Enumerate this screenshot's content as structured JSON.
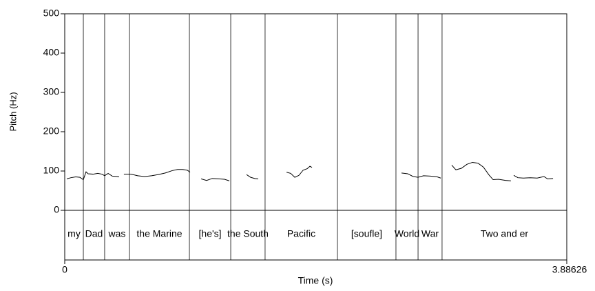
{
  "chart_data": {
    "type": "line",
    "x_label": "Time (s)",
    "y_label": "Pitch (Hz)",
    "xlim": [
      0,
      3.88626
    ],
    "xticks": [
      0,
      3.88626
    ],
    "ylim": [
      0,
      500
    ],
    "yticks": [
      0,
      100,
      200,
      300,
      400,
      500
    ],
    "color": "#000000",
    "x": [
      0.016,
      0.048,
      0.085,
      0.117,
      0.144,
      0.165,
      0.181,
      0.219,
      0.256,
      0.288,
      0.309,
      0.336,
      0.368,
      0.405,
      0.421,
      null,
      0.458,
      0.512,
      0.565,
      0.618,
      0.672,
      0.725,
      0.778,
      0.832,
      0.874,
      0.912,
      0.949,
      0.97,
      null,
      1.056,
      1.098,
      1.141,
      1.194,
      1.237,
      1.274,
      null,
      1.407,
      1.439,
      1.471,
      1.498,
      null,
      1.717,
      1.749,
      1.781,
      1.813,
      1.845,
      1.877,
      1.898,
      1.914,
      null,
      2.607,
      2.655,
      2.697,
      2.735,
      2.777,
      2.831,
      2.884,
      2.911,
      null,
      2.996,
      3.028,
      3.071,
      3.113,
      3.156,
      3.199,
      3.241,
      3.284,
      3.316,
      3.358,
      3.412,
      3.454,
      null,
      3.476,
      3.508,
      3.55,
      3.604,
      3.657,
      3.71,
      3.737,
      3.78
    ],
    "values": [
      80,
      83,
      85,
      84,
      78,
      98,
      93,
      92,
      94,
      92,
      88,
      94,
      87,
      86,
      85,
      null,
      92,
      92,
      88,
      86,
      88,
      91,
      95,
      101,
      104,
      104,
      102,
      97,
      null,
      80,
      76,
      81,
      80,
      79,
      75,
      null,
      91,
      84,
      81,
      80,
      null,
      97,
      94,
      84,
      89,
      102,
      106,
      112,
      109,
      null,
      95,
      93,
      86,
      84,
      88,
      87,
      85,
      82,
      null,
      115,
      103,
      107,
      117,
      122,
      120,
      110,
      90,
      78,
      79,
      76,
      75,
      null,
      89,
      83,
      82,
      83,
      82,
      86,
      80,
      81
    ],
    "tier_boundaries": [
      0.144,
      0.309,
      0.501,
      0.965,
      1.285,
      1.551,
      2.111,
      2.564,
      2.735,
      2.921
    ],
    "tier_labels": [
      "my",
      "Dad",
      "was",
      "the Marine",
      "[he's]",
      "the South",
      "Pacific",
      "[soufle]",
      "World",
      "War",
      "Two and er"
    ]
  }
}
